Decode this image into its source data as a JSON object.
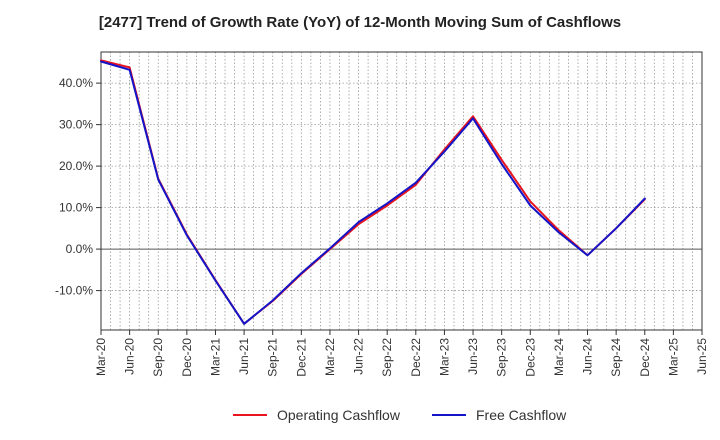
{
  "chart_data": {
    "type": "line",
    "title": "[2477]  Trend of Growth Rate (YoY) of 12-Month Moving Sum of Cashflows",
    "xlabel": "",
    "ylabel": "",
    "x": [
      "Mar-20",
      "Jun-20",
      "Sep-20",
      "Dec-20",
      "Mar-21",
      "Jun-21",
      "Sep-21",
      "Dec-21",
      "Mar-22",
      "Jun-22",
      "Sep-22",
      "Dec-22",
      "Mar-23",
      "Jun-23",
      "Sep-23",
      "Dec-23",
      "Mar-24",
      "Jun-24",
      "Sep-24",
      "Dec-24",
      "Mar-25",
      "Jun-25"
    ],
    "ylim": [
      -19.5,
      47.5
    ],
    "yticks": [
      -10,
      0,
      10,
      20,
      30,
      40
    ],
    "ytick_labels": [
      "-10.0%",
      "0.0%",
      "10.0%",
      "20.0%",
      "30.0%",
      "40.0%"
    ],
    "grid": true,
    "legend_position": "bottom",
    "series": [
      {
        "name": "Operating Cashflow",
        "color": "#e8141e",
        "values": [
          45.5,
          43.8,
          17.0,
          3.5,
          -7.5,
          -18.0,
          -12.5,
          -6.0,
          0.0,
          6.0,
          10.5,
          15.5,
          24.0,
          32.0,
          21.5,
          11.5,
          4.5,
          -1.5,
          5.0,
          12.0,
          null,
          null
        ]
      },
      {
        "name": "Free Cashflow",
        "color": "#1414c8",
        "values": [
          45.2,
          43.2,
          16.8,
          3.3,
          -7.6,
          -18.0,
          -12.4,
          -5.8,
          0.2,
          6.5,
          11.0,
          16.0,
          23.5,
          31.5,
          20.5,
          10.5,
          4.0,
          -1.5,
          5.0,
          12.2,
          null,
          null
        ]
      }
    ]
  }
}
